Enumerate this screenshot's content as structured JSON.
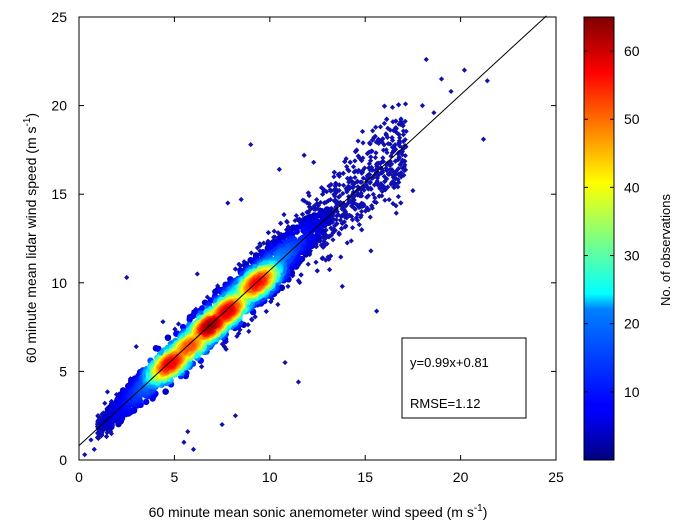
{
  "chart_data": {
    "type": "scatter",
    "title": "",
    "xlabel": "60 minute mean sonic anemometer wind speed (m s",
    "xlabel_sup": "-1",
    "xlabel_end": ")",
    "ylabel": "60 minute mean lidar wind speed (m s",
    "ylabel_sup": "-1",
    "ylabel_end": ")",
    "xlim": [
      0,
      25
    ],
    "ylim": [
      0,
      25
    ],
    "x_ticks": [
      "0",
      "5",
      "10",
      "15",
      "20",
      "25"
    ],
    "y_ticks": [
      "0",
      "5",
      "10",
      "15",
      "20",
      "25"
    ],
    "grid": false,
    "fit_line": {
      "slope": 0.99,
      "intercept": 0.81,
      "x_range": [
        0,
        24.5
      ]
    },
    "annotations": {
      "equation": "y=0.99x+0.81",
      "rmse": "RMSE=1.12"
    },
    "density_cores": [
      {
        "x": 5.0,
        "y": 5.3,
        "count": 60
      },
      {
        "x": 7.0,
        "y": 7.5,
        "count": 64
      },
      {
        "x": 8.0,
        "y": 8.2,
        "count": 62
      },
      {
        "x": 9.5,
        "y": 9.9,
        "count": 58
      },
      {
        "x": 6.0,
        "y": 6.2,
        "count": 55
      }
    ],
    "outliers": [
      {
        "x": 2.5,
        "y": 10.3
      },
      {
        "x": 9.0,
        "y": 17.8
      },
      {
        "x": 18.2,
        "y": 22.6
      },
      {
        "x": 19.0,
        "y": 21.5
      },
      {
        "x": 20.2,
        "y": 22.0
      },
      {
        "x": 21.4,
        "y": 21.4
      },
      {
        "x": 21.2,
        "y": 18.1
      },
      {
        "x": 18.6,
        "y": 19.6
      },
      {
        "x": 12.3,
        "y": 16.8
      },
      {
        "x": 11.8,
        "y": 17.2
      },
      {
        "x": 10.5,
        "y": 16.4
      },
      {
        "x": 5.5,
        "y": 1.0
      },
      {
        "x": 5.7,
        "y": 1.6
      },
      {
        "x": 6.0,
        "y": 0.6
      },
      {
        "x": 7.5,
        "y": 2.0
      },
      {
        "x": 8.2,
        "y": 2.5
      },
      {
        "x": 8.5,
        "y": 14.7
      },
      {
        "x": 7.8,
        "y": 14.5
      },
      {
        "x": 13.8,
        "y": 9.8
      },
      {
        "x": 15.3,
        "y": 11.8
      },
      {
        "x": 16.5,
        "y": 15.4
      },
      {
        "x": 17.5,
        "y": 15.2
      },
      {
        "x": 15.8,
        "y": 18.8
      },
      {
        "x": 14.0,
        "y": 17.0
      },
      {
        "x": 9.5,
        "y": 12.1
      },
      {
        "x": 6.2,
        "y": 10.5
      },
      {
        "x": 4.4,
        "y": 7.8
      },
      {
        "x": 3.0,
        "y": 6.4
      },
      {
        "x": 11.5,
        "y": 4.4
      },
      {
        "x": 10.8,
        "y": 5.5
      },
      {
        "x": 15.6,
        "y": 8.4
      },
      {
        "x": 18.0,
        "y": 20.0
      },
      {
        "x": 19.5,
        "y": 20.8
      },
      {
        "x": 0.3,
        "y": 0.3
      },
      {
        "x": 0.8,
        "y": 0.6
      },
      {
        "x": 16.0,
        "y": 16.0
      }
    ],
    "colorbar": {
      "label": "No. of observations",
      "min": 0,
      "max": 65,
      "ticks": [
        "10",
        "20",
        "30",
        "40",
        "50",
        "60"
      ],
      "colormap": "jet"
    },
    "marker_color": "#1010b0"
  }
}
